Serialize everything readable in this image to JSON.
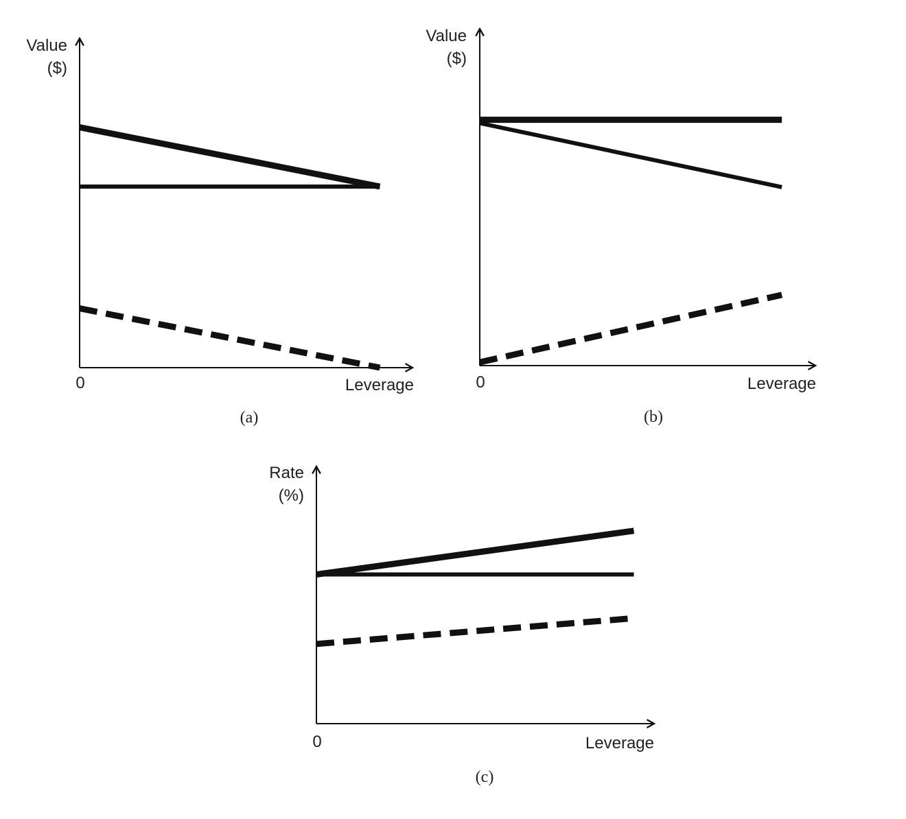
{
  "colors": {
    "ink": "#111111",
    "background": "#ffffff"
  },
  "chart_data": [
    {
      "type": "line",
      "panel_label": "(a)",
      "xlabel": "Leverage",
      "ylabel": [
        "Value",
        "($)"
      ],
      "x_tick_labels": [
        "0"
      ],
      "xlim": [
        0,
        1
      ],
      "ylim": [
        0,
        1
      ],
      "series": [
        {
          "style": "solid-thick",
          "x": [
            0,
            0.9
          ],
          "y": [
            0.73,
            0.55
          ]
        },
        {
          "style": "solid",
          "x": [
            0,
            0.9
          ],
          "y": [
            0.55,
            0.55
          ]
        },
        {
          "style": "dashed",
          "x": [
            0,
            0.9
          ],
          "y": [
            0.18,
            0.0
          ]
        }
      ]
    },
    {
      "type": "line",
      "panel_label": "(b)",
      "xlabel": "Leverage",
      "ylabel": [
        "Value",
        "($)"
      ],
      "x_tick_labels": [
        "0"
      ],
      "xlim": [
        0,
        1
      ],
      "ylim": [
        0,
        1
      ],
      "series": [
        {
          "style": "solid-thick",
          "x": [
            0,
            0.9
          ],
          "y": [
            0.73,
            0.73
          ]
        },
        {
          "style": "solid",
          "x": [
            0,
            0.9
          ],
          "y": [
            0.72,
            0.53
          ]
        },
        {
          "style": "dashed",
          "x": [
            0,
            0.9
          ],
          "y": [
            0.01,
            0.21
          ]
        }
      ]
    },
    {
      "type": "line",
      "panel_label": "(c)",
      "xlabel": "Leverage",
      "ylabel": [
        "Rate",
        "(%)"
      ],
      "x_tick_labels": [
        "0"
      ],
      "xlim": [
        0,
        1
      ],
      "ylim": [
        0,
        1
      ],
      "series": [
        {
          "style": "solid-thick",
          "x": [
            0,
            0.94
          ],
          "y": [
            0.58,
            0.75
          ]
        },
        {
          "style": "solid",
          "x": [
            0,
            0.94
          ],
          "y": [
            0.58,
            0.58
          ]
        },
        {
          "style": "dashed",
          "x": [
            0,
            0.94
          ],
          "y": [
            0.31,
            0.41
          ]
        }
      ]
    }
  ]
}
